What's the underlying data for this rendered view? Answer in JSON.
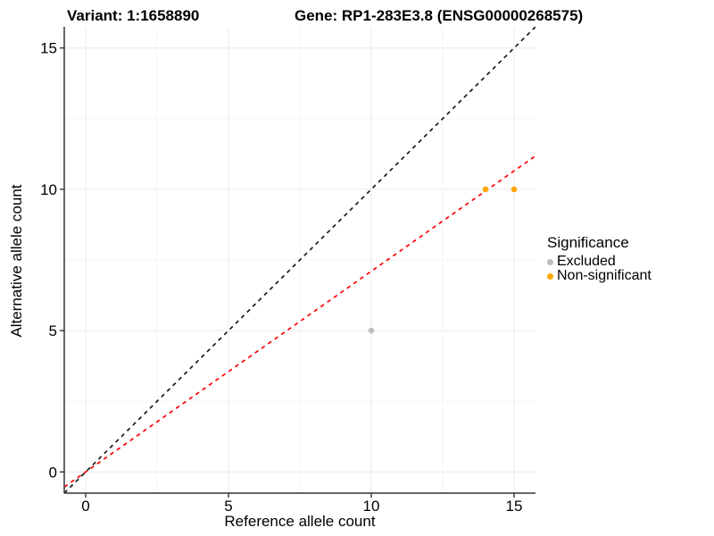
{
  "header": {
    "variant_title": "Variant: 1:1658890",
    "gene_title": "Gene: RP1-283E3.8 (ENSG00000268575)"
  },
  "chart_data": {
    "type": "scatter",
    "xlabel": "Reference allele count",
    "ylabel": "Alternative allele count",
    "xlim": [
      -0.75,
      15.75
    ],
    "ylim": [
      -0.75,
      15.75
    ],
    "xticks": [
      0,
      5,
      10,
      15
    ],
    "yticks": [
      0,
      5,
      10,
      15
    ],
    "xminor": [
      2.5,
      7.5,
      12.5
    ],
    "yminor": [
      2.5,
      7.5,
      12.5
    ],
    "grid": true,
    "series": [
      {
        "name": "Excluded",
        "color": "#BEBEBE",
        "points": [
          [
            10,
            5
          ]
        ]
      },
      {
        "name": "Non-significant",
        "color": "#FFA500",
        "points": [
          [
            14,
            10
          ],
          [
            15,
            10
          ]
        ]
      }
    ],
    "lines": [
      {
        "name": "identity-line",
        "slope": 1,
        "intercept": 0,
        "color": "#1A1A1A",
        "style": "dashed"
      },
      {
        "name": "fit-line",
        "slope": 0.71,
        "intercept": 0,
        "color": "#FF0000",
        "style": "dashed"
      }
    ],
    "legend": {
      "title": "Significance",
      "position": "right",
      "items": [
        {
          "label": "Excluded",
          "color": "#BEBEBE"
        },
        {
          "label": "Non-significant",
          "color": "#FFA500"
        }
      ]
    },
    "colors": {
      "grid_major": "#EBEBEB",
      "grid_minor": "#F6F6F6",
      "axis_line": "#333333",
      "tick_mark": "#333333",
      "tick_label": "#000000",
      "background": "#FFFFFF"
    }
  }
}
